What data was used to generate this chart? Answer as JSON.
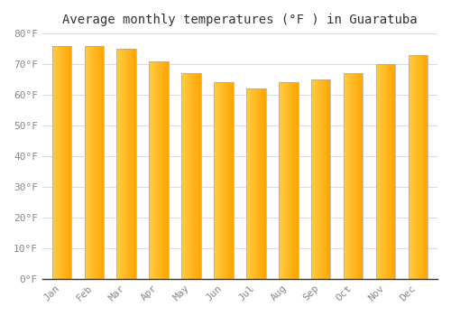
{
  "months": [
    "Jan",
    "Feb",
    "Mar",
    "Apr",
    "May",
    "Jun",
    "Jul",
    "Aug",
    "Sep",
    "Oct",
    "Nov",
    "Dec"
  ],
  "values": [
    76,
    76,
    75,
    71,
    67,
    64,
    62,
    64,
    65,
    67,
    70,
    73
  ],
  "bar_color_left": "#FFCC44",
  "bar_color_right": "#FFA500",
  "title": "Average monthly temperatures (°F ) in Guaratuba",
  "ylim": [
    0,
    80
  ],
  "yticks": [
    0,
    10,
    20,
    30,
    40,
    50,
    60,
    70,
    80
  ],
  "ytick_labels": [
    "0°F",
    "10°F",
    "20°F",
    "30°F",
    "40°F",
    "50°F",
    "60°F",
    "70°F",
    "80°F"
  ],
  "background_color": "#FFFFFF",
  "grid_color": "#DDDDDD",
  "title_fontsize": 10,
  "tick_fontsize": 8,
  "bar_width": 0.6,
  "border_color": "#AAAAAA"
}
